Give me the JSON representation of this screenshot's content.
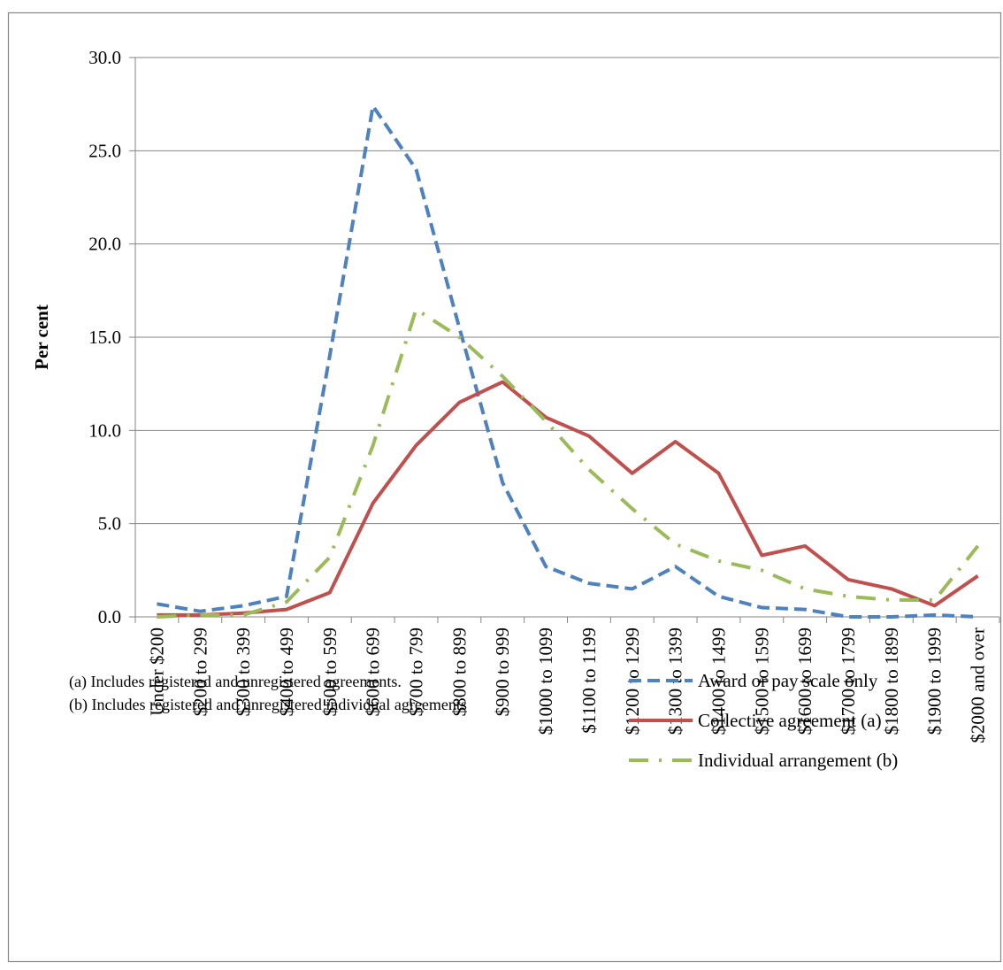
{
  "chart_data": {
    "type": "line",
    "title": "",
    "xlabel": "",
    "ylabel": "Per cent",
    "ylim": [
      0,
      30
    ],
    "yticks": [
      "0.0",
      "5.0",
      "10.0",
      "15.0",
      "20.0",
      "25.0",
      "30.0"
    ],
    "grid": true,
    "legend_position": "bottom-right",
    "categories": [
      "Under $200",
      "$200 to 299",
      "$300 to 399",
      "$400 to 499",
      "$500 to 599",
      "$600 to 699",
      "$700 to 799",
      "$800 to 899",
      "$900 to 999",
      "$1000 to 1099",
      "$1100 to 1199",
      "$1200 to 1299",
      "$1300 to 1399",
      "$1400 to 1499",
      "$1500 to 1599",
      "$1600 to 1699",
      "$1700 to 1799",
      "$1800 to 1899",
      "$1900 to 1999",
      "$2000 and over"
    ],
    "series": [
      {
        "name": "Award or pay scale only",
        "color": "#4F81BD",
        "style": "dashed",
        "values": [
          0.7,
          0.3,
          0.6,
          1.1,
          14.0,
          27.4,
          24.0,
          15.5,
          7.2,
          2.7,
          1.8,
          1.5,
          2.7,
          1.1,
          0.5,
          0.4,
          0.0,
          0.0,
          0.1,
          0.0
        ]
      },
      {
        "name": "Collective agreement (a)",
        "color": "#C0504D",
        "style": "solid",
        "values": [
          0.1,
          0.1,
          0.2,
          0.4,
          1.3,
          6.1,
          9.2,
          11.5,
          12.6,
          10.7,
          9.7,
          7.7,
          9.4,
          7.7,
          3.3,
          3.8,
          2.0,
          1.5,
          0.6,
          2.2
        ]
      },
      {
        "name": "Individual arrangement (b)",
        "color": "#9BBB59",
        "style": "dash-dot",
        "values": [
          0.0,
          0.1,
          0.1,
          0.8,
          3.2,
          9.2,
          16.5,
          15.0,
          12.9,
          10.5,
          7.9,
          5.8,
          3.9,
          3.0,
          2.5,
          1.5,
          1.1,
          0.9,
          0.9,
          3.8
        ]
      }
    ],
    "notes": [
      "(a) Includes registered and unregistered agreements.",
      "(b) Includes registered and unregistered individual agreements"
    ]
  }
}
